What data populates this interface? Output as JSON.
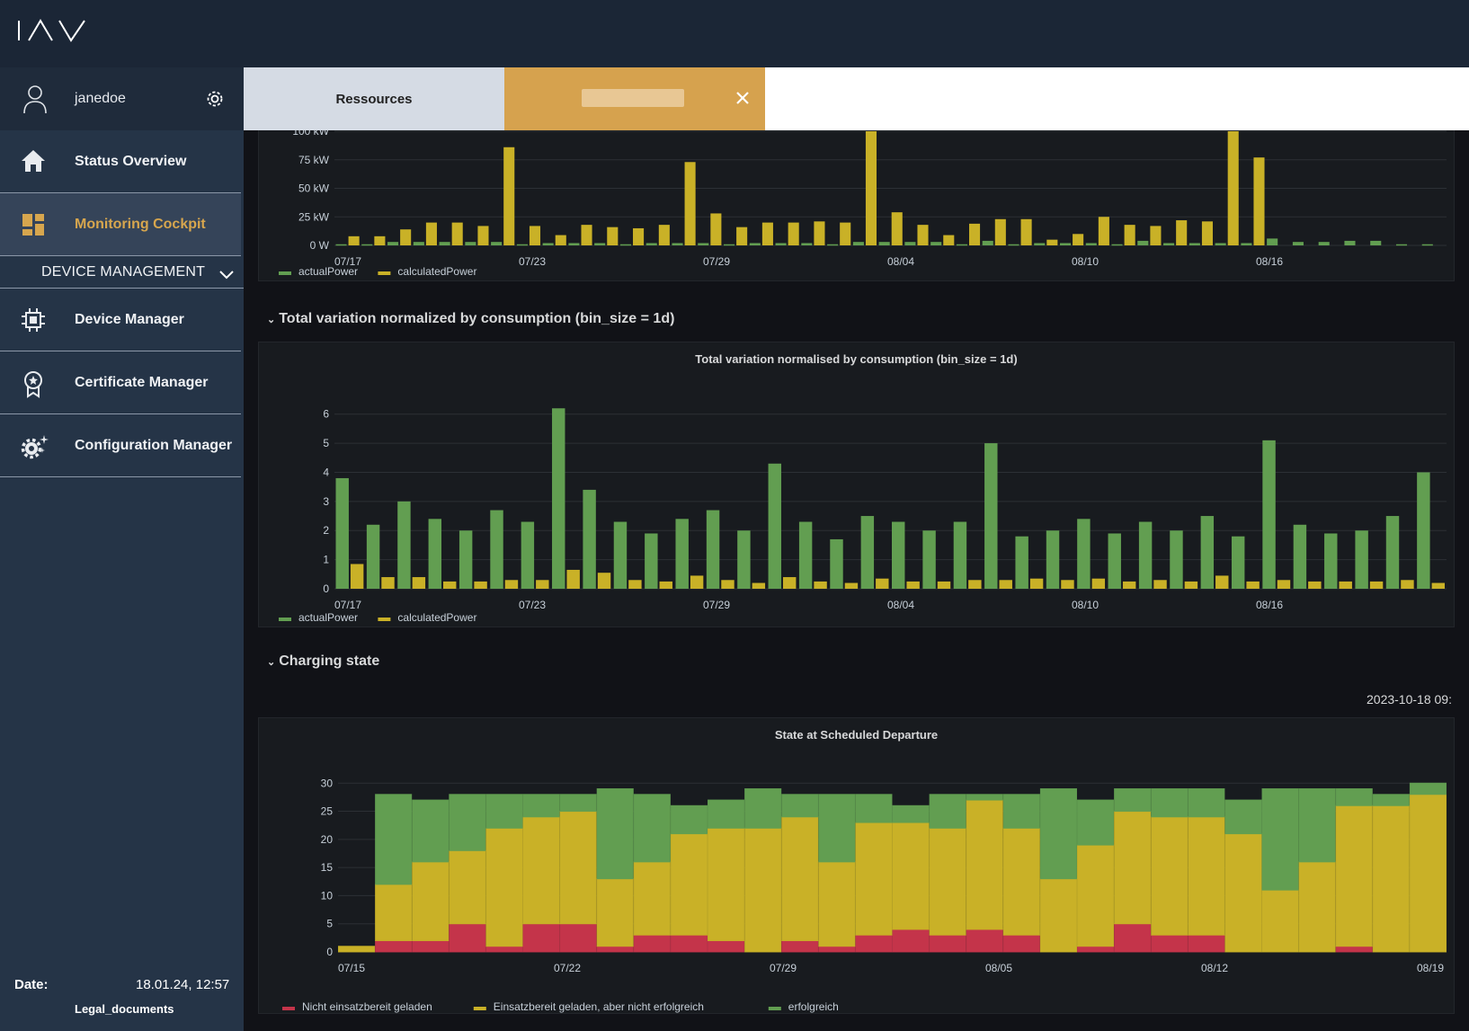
{
  "app": {
    "logo_text": "IAV"
  },
  "user": {
    "name": "janedoe"
  },
  "nav": {
    "status_overview": "Status Overview",
    "monitoring_cockpit": "Monitoring Cockpit",
    "device_management": "DEVICE MANAGEMENT",
    "device_manager": "Device Manager",
    "certificate_manager": "Certificate Manager",
    "configuration_manager": "Configuration Manager"
  },
  "footer": {
    "date_label": "Date:",
    "date_value": "18.01.24, 12:57",
    "legal": "Legal_documents"
  },
  "tabs": {
    "tab1": "Ressources"
  },
  "rows": {
    "variation": "Total variation normalized by consumption (bin_size = 1d)",
    "charging": "Charging state"
  },
  "timestamp": "2023-10-18 09:",
  "colors": {
    "green": "#629e51",
    "yellow": "#c9b127",
    "red": "#c4344a",
    "accent": "#d7a64e"
  },
  "chart_data": [
    {
      "type": "bar",
      "title": "",
      "y_ticks": [
        "0 W",
        "25 kW",
        "50 kW",
        "75 kW",
        "100 kW"
      ],
      "ylim": [
        0,
        100
      ],
      "x_ticks": [
        "07/17",
        "07/23",
        "07/29",
        "08/04",
        "08/10",
        "08/16"
      ],
      "series": [
        {
          "name": "actualPower",
          "color": "#629e51",
          "values": [
            1,
            1,
            3,
            3,
            3,
            3,
            3,
            1,
            2,
            2,
            2,
            1,
            2,
            2,
            2,
            1,
            2,
            2,
            2,
            1,
            3,
            3,
            3,
            3,
            1,
            4,
            1,
            2,
            2,
            2,
            1,
            4,
            2,
            2,
            2,
            2,
            6,
            3,
            3,
            4,
            4,
            1,
            1
          ]
        },
        {
          "name": "calculatedPower",
          "color": "#c9b127",
          "values": [
            8,
            8,
            14,
            20,
            20,
            17,
            86,
            17,
            9,
            18,
            16,
            15,
            18,
            73,
            28,
            16,
            20,
            20,
            21,
            20,
            100,
            29,
            18,
            9,
            19,
            23,
            23,
            5,
            10,
            25,
            18,
            17,
            22,
            21,
            100,
            77,
            0,
            0,
            0,
            0,
            0,
            0,
            0
          ]
        }
      ],
      "legend": "bottom-left"
    },
    {
      "type": "bar",
      "title": "Total variation normalised by consumption (bin_size = 1d)",
      "ylim": [
        0,
        6.3
      ],
      "y_ticks": [
        "0",
        "1",
        "2",
        "3",
        "4",
        "5",
        "6"
      ],
      "x_ticks": [
        "07/17",
        "07/23",
        "07/29",
        "08/04",
        "08/10",
        "08/16"
      ],
      "series": [
        {
          "name": "actualPower",
          "color": "#629e51",
          "values": [
            3.8,
            2.2,
            3.0,
            2.4,
            2.0,
            2.7,
            2.3,
            6.2,
            3.4,
            2.3,
            1.9,
            2.4,
            2.7,
            2.0,
            4.3,
            2.3,
            1.7,
            2.5,
            2.3,
            2.0,
            2.3,
            5.0,
            1.8,
            2.0,
            2.4,
            1.9,
            2.3,
            2.0,
            2.5,
            1.8,
            5.1,
            2.2,
            1.9,
            2.0,
            2.5,
            4.0
          ]
        },
        {
          "name": "calculatedPower",
          "color": "#c9b127",
          "values": [
            0.85,
            0.4,
            0.4,
            0.25,
            0.25,
            0.3,
            0.3,
            0.65,
            0.55,
            0.3,
            0.25,
            0.45,
            0.3,
            0.2,
            0.4,
            0.25,
            0.2,
            0.35,
            0.25,
            0.25,
            0.3,
            0.3,
            0.35,
            0.3,
            0.35,
            0.25,
            0.3,
            0.25,
            0.45,
            0.25,
            0.3,
            0.25,
            0.25,
            0.25,
            0.3,
            0.2
          ]
        }
      ],
      "legend": "bottom-left"
    },
    {
      "type": "bar",
      "stacked": true,
      "title": "State at Scheduled Departure",
      "ylim": [
        0,
        31
      ],
      "y_ticks": [
        "0",
        "5",
        "10",
        "15",
        "20",
        "25",
        "30"
      ],
      "x_ticks": [
        "07/15",
        "07/22",
        "07/29",
        "08/05",
        "08/12",
        "08/19"
      ],
      "series": [
        {
          "name": "Nicht einsatzbereit geladen",
          "color": "#c4344a",
          "values": [
            0,
            2,
            2,
            5,
            1,
            5,
            5,
            1,
            3,
            3,
            2,
            0,
            2,
            1,
            3,
            4,
            3,
            4,
            3,
            0,
            1,
            5,
            3,
            3,
            0,
            0,
            0,
            1,
            0,
            0
          ]
        },
        {
          "name": "Einsatzbereit geladen, aber nicht erfolgreich",
          "color": "#c9b127",
          "values": [
            1,
            10,
            14,
            13,
            21,
            19,
            20,
            12,
            13,
            18,
            20,
            22,
            22,
            15,
            20,
            19,
            19,
            23,
            19,
            13,
            18,
            20,
            21,
            21,
            21,
            11,
            16,
            25,
            26,
            28
          ]
        },
        {
          "name": "erfolgreich",
          "color": "#629e51",
          "values": [
            0,
            16,
            11,
            10,
            6,
            4,
            3,
            16,
            12,
            5,
            5,
            7,
            4,
            12,
            5,
            3,
            6,
            1,
            6,
            16,
            8,
            4,
            5,
            5,
            6,
            18,
            13,
            3,
            2,
            2
          ]
        }
      ],
      "legend": "bottom-left"
    }
  ]
}
